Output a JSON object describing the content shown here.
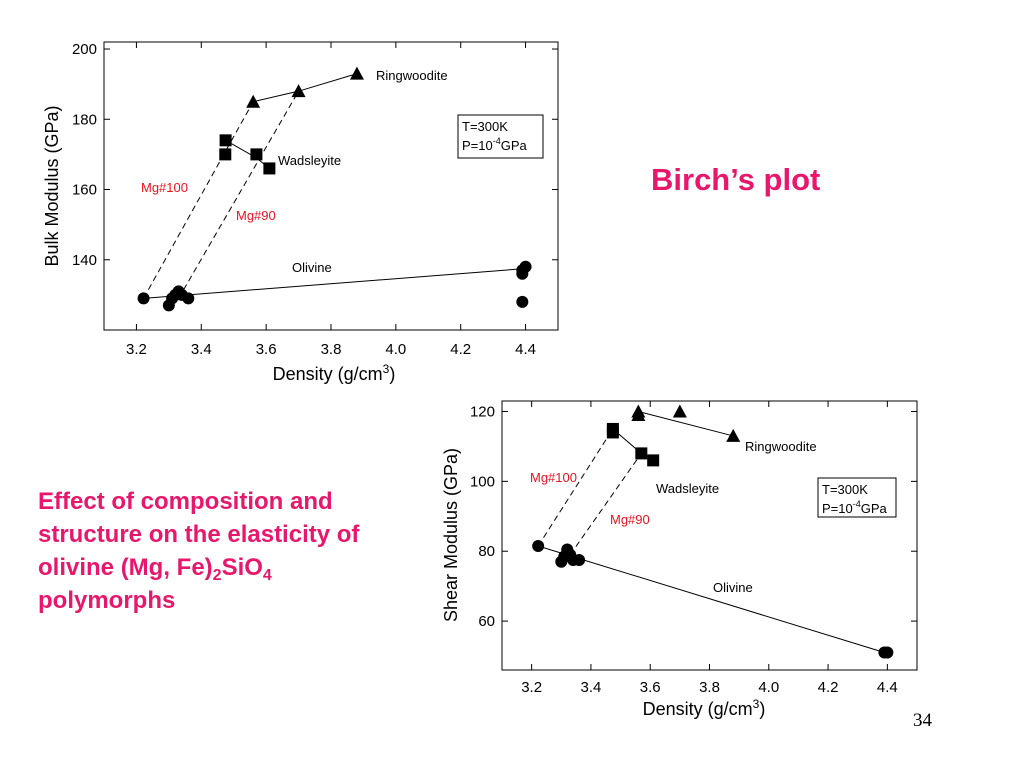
{
  "slide": {
    "title": "Birch’s plot",
    "caption": {
      "lines": [
        "Effect of composition and",
        "structure on the elasticity of",
        "olivine (Mg, Fe)",
        "2",
        "SiO",
        "4",
        "polymorphs"
      ]
    },
    "page_number": "34"
  },
  "colors": {
    "accent": "#e8176b",
    "annotation_red": "#e8141e",
    "ink": "#000000"
  },
  "chart_data": [
    {
      "type": "scatter",
      "xlabel": "Density (g/cm",
      "xlabel_sup": "3",
      "xlabel_end": ")",
      "ylabel": "Bulk Modulus (GPa)",
      "xlim": [
        3.1,
        4.5
      ],
      "ylim": [
        120,
        202
      ],
      "xticks": [
        3.2,
        3.4,
        3.6,
        3.8,
        4.0,
        4.2,
        4.4
      ],
      "xtick_labels": [
        "3.2",
        "3.4",
        "3.6",
        "3.8",
        "4.0",
        "4.2",
        "4.4"
      ],
      "yticks": [
        140,
        160,
        180,
        200
      ],
      "ytick_labels": [
        "140",
        "160",
        "180",
        "200"
      ],
      "grid": false,
      "conditions": {
        "line1": "T=300K",
        "line2_prefix": "P=10",
        "line2_sup": "-4",
        "line2_suffix": "GPa"
      },
      "series": [
        {
          "name": "Olivine",
          "marker": "circle",
          "points": [
            [
              3.222,
              129
            ],
            [
              3.3,
              127
            ],
            [
              3.31,
              129
            ],
            [
              3.32,
              130
            ],
            [
              3.33,
              131
            ],
            [
              3.34,
              130
            ],
            [
              3.36,
              129
            ],
            [
              4.39,
              137
            ],
            [
              4.39,
              136
            ],
            [
              4.4,
              138
            ],
            [
              4.39,
              128
            ]
          ],
          "line": [
            [
              3.222,
              129
            ],
            [
              4.4,
              137.5
            ]
          ]
        },
        {
          "name": "Wadsleyite",
          "marker": "square",
          "points": [
            [
              3.475,
              174
            ],
            [
              3.474,
              170
            ],
            [
              3.57,
              170
            ],
            [
              3.61,
              166
            ]
          ],
          "line": [
            [
              3.475,
              174
            ],
            [
              3.57,
              169
            ],
            [
              3.61,
              166
            ]
          ]
        },
        {
          "name": "Ringwoodite",
          "marker": "triangle",
          "points": [
            [
              3.56,
              185
            ],
            [
              3.7,
              188
            ],
            [
              3.88,
              193
            ]
          ],
          "line": [
            [
              3.56,
              185
            ],
            [
              3.7,
              188
            ],
            [
              3.88,
              193
            ]
          ]
        }
      ],
      "trend_lines": [
        {
          "name": "Mg#100",
          "from": [
            3.222,
            129
          ],
          "to": [
            3.56,
            185
          ]
        },
        {
          "name": "Mg#90",
          "from": [
            3.33,
            129
          ],
          "to": [
            3.7,
            188
          ]
        }
      ]
    },
    {
      "type": "scatter",
      "xlabel": "Density (g/cm",
      "xlabel_sup": "3",
      "xlabel_end": ")",
      "ylabel": "Shear Modulus (GPa)",
      "xlim": [
        3.1,
        4.5
      ],
      "ylim": [
        46,
        123
      ],
      "xticks": [
        3.2,
        3.4,
        3.6,
        3.8,
        4.0,
        4.2,
        4.4
      ],
      "xtick_labels": [
        "3.2",
        "3.4",
        "3.6",
        "3.8",
        "4.0",
        "4.2",
        "4.4"
      ],
      "yticks": [
        60,
        80,
        100,
        120
      ],
      "ytick_labels": [
        "60",
        "80",
        "100",
        "120"
      ],
      "grid": false,
      "conditions": {
        "line1": "T=300K",
        "line2_prefix": "P=10",
        "line2_sup": "-4",
        "line2_suffix": "GPa"
      },
      "series": [
        {
          "name": "Olivine",
          "marker": "circle",
          "points": [
            [
              3.222,
              81.5
            ],
            [
              3.3,
              77
            ],
            [
              3.31,
              78.5
            ],
            [
              3.32,
              80.5
            ],
            [
              3.33,
              79
            ],
            [
              3.34,
              77.5
            ],
            [
              3.36,
              77.5
            ],
            [
              4.39,
              51
            ],
            [
              4.4,
              51
            ]
          ],
          "line": [
            [
              3.222,
              81.5
            ],
            [
              4.39,
              51
            ]
          ]
        },
        {
          "name": "Wadsleyite",
          "marker": "square",
          "points": [
            [
              3.474,
              115
            ],
            [
              3.474,
              114
            ],
            [
              3.57,
              108
            ],
            [
              3.61,
              106
            ]
          ],
          "line": [
            [
              3.474,
              115
            ],
            [
              3.57,
              108
            ],
            [
              3.61,
              106
            ]
          ]
        },
        {
          "name": "Ringwoodite",
          "marker": "triangle",
          "points": [
            [
              3.56,
              120
            ],
            [
              3.56,
              119
            ],
            [
              3.7,
              120
            ],
            [
              3.88,
              113
            ]
          ],
          "line": [
            [
              3.56,
              120
            ],
            [
              3.88,
              113
            ]
          ]
        }
      ],
      "trend_lines": [
        {
          "name": "Mg#100",
          "from": [
            3.222,
            81.5
          ],
          "to": [
            3.474,
            115
          ]
        },
        {
          "name": "Mg#90",
          "from": [
            3.33,
            79
          ],
          "to": [
            3.57,
            108
          ]
        }
      ]
    }
  ]
}
